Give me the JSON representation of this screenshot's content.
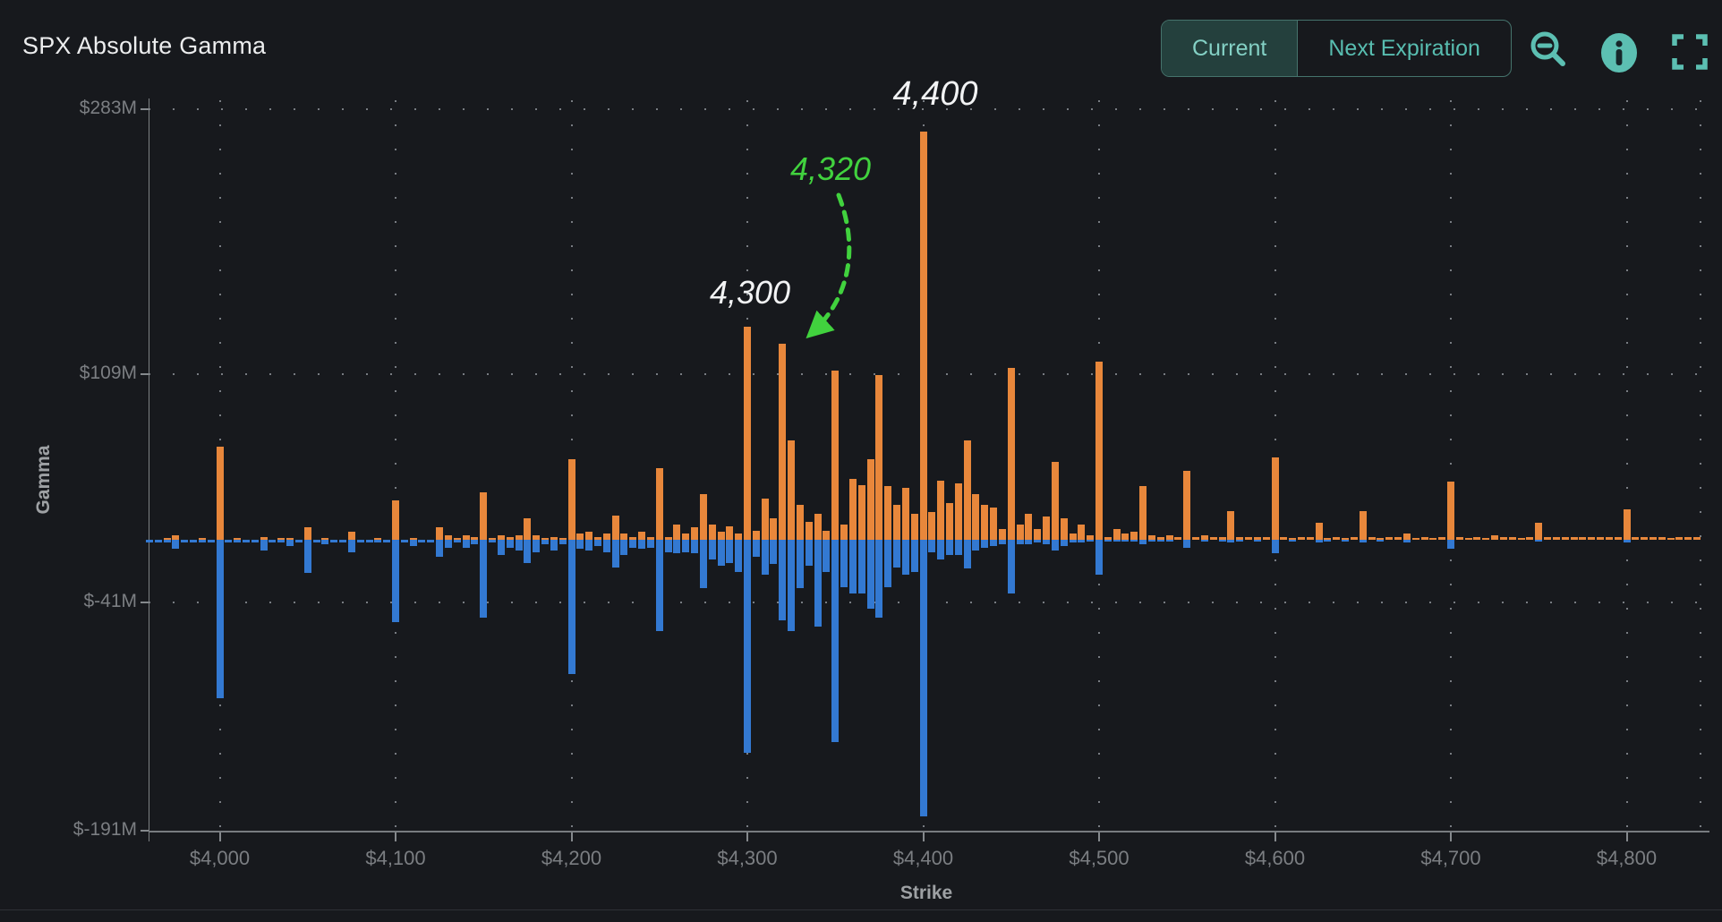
{
  "header": {
    "title": "SPX Absolute Gamma",
    "toggle": {
      "options": [
        {
          "label": "Current",
          "selected": true
        },
        {
          "label": "Next Expiration",
          "selected": false
        }
      ]
    },
    "icons": [
      {
        "name": "zoom-out-icon"
      },
      {
        "name": "info-icon"
      },
      {
        "name": "fullscreen-icon"
      }
    ]
  },
  "colors": {
    "background": "#17191D",
    "call_orange": "#E8873B",
    "put_blue": "#3379D2",
    "teal_accent": "#5CBFB2",
    "selected_segment_bg": "#24403D",
    "segment_border": "#45736C",
    "axis_gray": "#7B7E82",
    "annotation_white": "#F2F3F4",
    "annotation_green": "#41D23E"
  },
  "chart_data": {
    "type": "bar",
    "title": "SPX Absolute Gamma",
    "xlabel": "Strike",
    "ylabel": "Gamma",
    "legend": "none",
    "grid": "dotted",
    "ylim_m": [
      -191,
      283
    ],
    "xlim_strike": [
      3960,
      4845
    ],
    "y_ticks": [
      {
        "value_m": 283,
        "label": "$283M"
      },
      {
        "value_m": 109,
        "label": "$109M"
      },
      {
        "value_m": -41,
        "label": "$-41M"
      },
      {
        "value_m": -191,
        "label": "$-191M"
      }
    ],
    "x_ticks": [
      {
        "strike": 4000,
        "label": "$4,000"
      },
      {
        "strike": 4100,
        "label": "$4,100"
      },
      {
        "strike": 4200,
        "label": "$4,200"
      },
      {
        "strike": 4300,
        "label": "$4,300"
      },
      {
        "strike": 4400,
        "label": "$4,400"
      },
      {
        "strike": 4500,
        "label": "$4,500"
      },
      {
        "strike": 4600,
        "label": "$4,600"
      },
      {
        "strike": 4700,
        "label": "$4,700"
      },
      {
        "strike": 4800,
        "label": "$4,800"
      }
    ],
    "series_meta": [
      {
        "name": "call-gamma",
        "direction": "up",
        "color": "#E8873B"
      },
      {
        "name": "put-gamma",
        "direction": "down",
        "color": "#3379D2"
      }
    ],
    "bars_format": [
      "strike",
      "call_gamma_m",
      "put_gamma_m"
    ],
    "bars": [
      [
        3960,
        0,
        2
      ],
      [
        3970,
        1,
        2
      ],
      [
        3975,
        3,
        6
      ],
      [
        3985,
        0,
        2
      ],
      [
        3990,
        1,
        2
      ],
      [
        4000,
        61,
        104
      ],
      [
        4010,
        1,
        2
      ],
      [
        4015,
        0,
        2
      ],
      [
        4025,
        2,
        7
      ],
      [
        4035,
        1,
        2
      ],
      [
        4040,
        1,
        4
      ],
      [
        4050,
        8,
        22
      ],
      [
        4060,
        1,
        3
      ],
      [
        4065,
        0,
        2
      ],
      [
        4075,
        5,
        8
      ],
      [
        4085,
        0,
        2
      ],
      [
        4090,
        1,
        2
      ],
      [
        4100,
        26,
        54
      ],
      [
        4110,
        1,
        4
      ],
      [
        4115,
        0,
        2
      ],
      [
        4125,
        8,
        11
      ],
      [
        4130,
        3,
        5
      ],
      [
        4135,
        1,
        2
      ],
      [
        4140,
        3,
        5
      ],
      [
        4145,
        2,
        3
      ],
      [
        4150,
        31,
        51
      ],
      [
        4155,
        1,
        2
      ],
      [
        4160,
        3,
        10
      ],
      [
        4165,
        2,
        5
      ],
      [
        4170,
        3,
        7
      ],
      [
        4175,
        14,
        15
      ],
      [
        4180,
        3,
        8
      ],
      [
        4185,
        1,
        3
      ],
      [
        4190,
        2,
        7
      ],
      [
        4195,
        1,
        3
      ],
      [
        4200,
        53,
        88
      ],
      [
        4205,
        4,
        6
      ],
      [
        4210,
        5,
        7
      ],
      [
        4215,
        2,
        4
      ],
      [
        4220,
        4,
        8
      ],
      [
        4225,
        16,
        18
      ],
      [
        4230,
        4,
        10
      ],
      [
        4235,
        2,
        5
      ],
      [
        4240,
        5,
        6
      ],
      [
        4245,
        2,
        5
      ],
      [
        4250,
        47,
        60
      ],
      [
        4255,
        2,
        8
      ],
      [
        4260,
        10,
        9
      ],
      [
        4265,
        4,
        8
      ],
      [
        4270,
        8,
        9
      ],
      [
        4275,
        30,
        32
      ],
      [
        4280,
        10,
        13
      ],
      [
        4285,
        5,
        17
      ],
      [
        4290,
        9,
        15
      ],
      [
        4295,
        4,
        21
      ],
      [
        4300,
        140,
        140
      ],
      [
        4305,
        6,
        11
      ],
      [
        4310,
        27,
        23
      ],
      [
        4315,
        14,
        16
      ],
      [
        4320,
        129,
        53
      ],
      [
        4325,
        65,
        60
      ],
      [
        4330,
        23,
        32
      ],
      [
        4335,
        12,
        17
      ],
      [
        4340,
        17,
        57
      ],
      [
        4345,
        6,
        21
      ],
      [
        4350,
        111,
        133
      ],
      [
        4355,
        10,
        31
      ],
      [
        4360,
        40,
        35
      ],
      [
        4365,
        36,
        35
      ],
      [
        4370,
        53,
        45
      ],
      [
        4375,
        108,
        51
      ],
      [
        4380,
        35,
        31
      ],
      [
        4385,
        23,
        18
      ],
      [
        4390,
        34,
        23
      ],
      [
        4395,
        17,
        21
      ],
      [
        4400,
        268,
        182
      ],
      [
        4405,
        18,
        8
      ],
      [
        4410,
        39,
        13
      ],
      [
        4415,
        24,
        10
      ],
      [
        4420,
        37,
        10
      ],
      [
        4425,
        65,
        19
      ],
      [
        4430,
        30,
        7
      ],
      [
        4435,
        23,
        5
      ],
      [
        4440,
        21,
        4
      ],
      [
        4445,
        7,
        3
      ],
      [
        4450,
        113,
        35
      ],
      [
        4455,
        10,
        3
      ],
      [
        4460,
        17,
        3
      ],
      [
        4465,
        7,
        2
      ],
      [
        4470,
        15,
        3
      ],
      [
        4475,
        51,
        7
      ],
      [
        4480,
        14,
        4
      ],
      [
        4485,
        4,
        2
      ],
      [
        4490,
        10,
        2
      ],
      [
        4495,
        3,
        1
      ],
      [
        4500,
        117,
        23
      ],
      [
        4505,
        2,
        1
      ],
      [
        4510,
        7,
        1
      ],
      [
        4515,
        4,
        1
      ],
      [
        4520,
        5,
        1
      ],
      [
        4525,
        35,
        3
      ],
      [
        4530,
        3,
        1
      ],
      [
        4535,
        2,
        1
      ],
      [
        4540,
        3,
        1
      ],
      [
        4550,
        45,
        5
      ],
      [
        4560,
        3,
        1
      ],
      [
        4570,
        2,
        1
      ],
      [
        4575,
        19,
        2
      ],
      [
        4580,
        2,
        1
      ],
      [
        4590,
        2,
        1
      ],
      [
        4600,
        54,
        9
      ],
      [
        4610,
        1,
        1
      ],
      [
        4625,
        11,
        2
      ],
      [
        4630,
        1,
        1
      ],
      [
        4640,
        1,
        1
      ],
      [
        4650,
        19,
        2
      ],
      [
        4660,
        1,
        1
      ],
      [
        4675,
        4,
        2
      ],
      [
        4680,
        1,
        0
      ],
      [
        4690,
        1,
        0
      ],
      [
        4700,
        38,
        6
      ],
      [
        4710,
        1,
        0
      ],
      [
        4720,
        1,
        0
      ],
      [
        4725,
        3,
        0
      ],
      [
        4740,
        1,
        0
      ],
      [
        4750,
        11,
        1
      ],
      [
        4775,
        2,
        0
      ],
      [
        4800,
        20,
        2
      ],
      [
        4825,
        1,
        0
      ]
    ],
    "micro_fill": {
      "note": "every 5-pt strike not listed shows a ~1.5M dash: put side below 4400, call side at/above 4400",
      "step": 5,
      "from": 3960,
      "to": 4840,
      "value_m": 1.5
    },
    "annotations": [
      {
        "text": "4,400",
        "strike": 4400,
        "color": "#F2F3F4",
        "arrow": false
      },
      {
        "text": "4,320",
        "strike": 4320,
        "color": "#41D23E",
        "arrow": true
      },
      {
        "text": "4,300",
        "strike": 4300,
        "color": "#F2F3F4",
        "arrow": false
      }
    ]
  }
}
